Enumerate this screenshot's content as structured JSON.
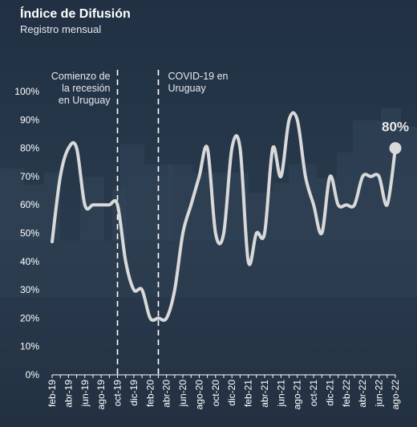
{
  "chart_data": {
    "type": "line",
    "title": "Índice de Difusión",
    "subtitle": "Registro mensual",
    "xlabel": "",
    "ylabel": "",
    "ylim": [
      0,
      100
    ],
    "grid": false,
    "y_ticks": [
      "0%",
      "10%",
      "20%",
      "30%",
      "40%",
      "50%",
      "60%",
      "70%",
      "80%",
      "90%",
      "100%"
    ],
    "x_tick_labels": [
      "feb-19",
      "abr-19",
      "jun-19",
      "ago-19",
      "oct-19",
      "dic-19",
      "feb-20",
      "abr-20",
      "jun-20",
      "ago-20",
      "oct-20",
      "dic-20",
      "feb-21",
      "abr-21",
      "jun-21",
      "ago-21",
      "oct-21",
      "dic-21",
      "feb-22",
      "abr-22",
      "jun-22",
      "ago-22"
    ],
    "x": [
      "feb-19",
      "mar-19",
      "abr-19",
      "may-19",
      "jun-19",
      "jul-19",
      "ago-19",
      "sep-19",
      "oct-19",
      "nov-19",
      "dic-19",
      "ene-20",
      "feb-20",
      "mar-20",
      "abr-20",
      "may-20",
      "jun-20",
      "jul-20",
      "ago-20",
      "sep-20",
      "oct-20",
      "nov-20",
      "dic-20",
      "ene-21",
      "feb-21",
      "mar-21",
      "abr-21",
      "may-21",
      "jun-21",
      "jul-21",
      "ago-21",
      "sep-21",
      "oct-21",
      "nov-21",
      "dic-21",
      "ene-22",
      "feb-22",
      "mar-22",
      "abr-22",
      "may-22",
      "jun-22",
      "jul-22",
      "ago-22"
    ],
    "series": [
      {
        "values": [
          47,
          70,
          80,
          80,
          60,
          60,
          60,
          60,
          60,
          40,
          30,
          30,
          20,
          20,
          20,
          30,
          50,
          60,
          70,
          80,
          50,
          50,
          80,
          80,
          40,
          50,
          50,
          80,
          70,
          90,
          90,
          70,
          60,
          50,
          70,
          60,
          60,
          60,
          70,
          70,
          70,
          60,
          80
        ],
        "color": "#d9d9d9"
      }
    ],
    "last_value_label": "80%",
    "annotations": [
      {
        "text": "Comienzo de la recesión en Uruguay",
        "lines": [
          "Comienzo de",
          "la recesión",
          "en Uruguay"
        ],
        "x": "oct-19"
      },
      {
        "text": "COVID-19 en Uruguay",
        "lines": [
          "COVID-19 en",
          "Uruguay"
        ],
        "x": "mar-20"
      }
    ]
  },
  "colors": {
    "line": "#d9d9d9",
    "text": "#ffffff",
    "muted_text": "#e6e9ee",
    "axis": "#ffffff",
    "annotation_line": "#ffffff"
  }
}
